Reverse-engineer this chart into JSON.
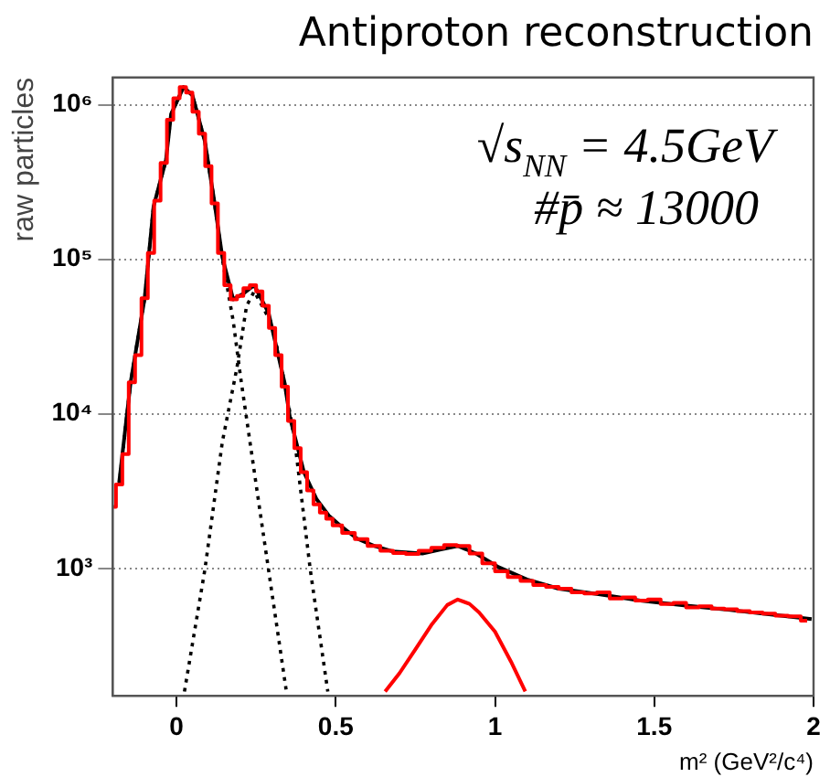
{
  "chart_data": {
    "type": "line",
    "title": "Antiproton reconstruction",
    "xlabel": "m² (GeV²/c⁴)",
    "ylabel": "raw particles",
    "annotations": [
      "√s$_{NN}$ = 4.5GeV",
      "#p̄ ≈ 13000"
    ],
    "log": "y",
    "grid": "y",
    "legend": false,
    "marker": "none",
    "xlim": [
      -0.2,
      2
    ],
    "xticks": [
      0,
      0.5,
      1,
      1.5,
      2
    ],
    "ylim": [
      150,
      1500000
    ],
    "yticks": [
      {
        "value": 1000,
        "label": "10³"
      },
      {
        "value": 10000,
        "label": "10⁴"
      },
      {
        "value": 100000,
        "label": "10⁵"
      },
      {
        "value": 1000000,
        "label": "10⁶"
      }
    ],
    "series": [
      {
        "type": "step",
        "color": "#ff0000",
        "x": [
          -0.2,
          -0.18,
          -0.16,
          -0.14,
          -0.12,
          -0.1,
          -0.08,
          -0.06,
          -0.04,
          -0.02,
          0,
          0.02,
          0.04,
          0.06,
          0.08,
          0.1,
          0.12,
          0.14,
          0.16,
          0.18,
          0.2,
          0.22,
          0.24,
          0.26,
          0.28,
          0.3,
          0.32,
          0.34,
          0.36,
          0.38,
          0.4,
          0.42,
          0.44,
          0.46,
          0.48,
          0.5,
          0.54,
          0.58,
          0.62,
          0.66,
          0.7,
          0.74,
          0.78,
          0.82,
          0.86,
          0.9,
          0.94,
          0.98,
          1.02,
          1.06,
          1.1,
          1.14,
          1.18,
          1.22,
          1.26,
          1.3,
          1.34,
          1.38,
          1.42,
          1.46,
          1.5,
          1.54,
          1.58,
          1.62,
          1.66,
          1.7,
          1.74,
          1.78,
          1.82,
          1.86,
          1.9,
          1.94,
          1.98
        ],
        "values": [
          2500,
          3500,
          5500,
          16000,
          24000,
          56000,
          110000,
          240000,
          420000,
          800000,
          1100000,
          1300000,
          1200000,
          900000,
          650000,
          400000,
          230000,
          110000,
          68000,
          55000,
          58000,
          65000,
          68000,
          62000,
          50000,
          36000,
          24000,
          15000,
          9000,
          6000,
          4200,
          3200,
          2600,
          2300,
          2100,
          1900,
          1700,
          1550,
          1400,
          1300,
          1260,
          1240,
          1300,
          1360,
          1420,
          1400,
          1250,
          1080,
          960,
          880,
          830,
          780,
          760,
          740,
          700,
          690,
          700,
          640,
          650,
          620,
          630,
          590,
          600,
          560,
          570,
          550,
          545,
          530,
          520,
          510,
          495,
          490,
          460
        ]
      },
      {
        "type": "line",
        "color": "#000000",
        "line_style": "dotted",
        "x": [
          -0.18,
          -0.144,
          -0.1,
          -0.072,
          -0.033,
          -0.017,
          0.022,
          0.05,
          0.089,
          0.117,
          0.144,
          0.178,
          0.2,
          0.272,
          0.344
        ],
        "values": [
          3500,
          16000,
          56000,
          220000,
          440000,
          870000,
          1300000,
          1150000,
          580000,
          250000,
          100000,
          40000,
          18000,
          1700,
          165
        ]
      },
      {
        "type": "line",
        "color": "#000000",
        "line_style": "dotted",
        "x": [
          0.025,
          0.089,
          0.144,
          0.19,
          0.22,
          0.244,
          0.3,
          0.339,
          0.37,
          0.42,
          0.475
        ],
        "values": [
          160,
          980,
          6600,
          20000,
          50000,
          62000,
          38000,
          16000,
          7000,
          980,
          160
        ]
      },
      {
        "type": "line",
        "color": "#ff0000",
        "x": [
          0.655,
          0.7,
          0.75,
          0.8,
          0.85,
          0.883,
          0.92,
          0.95,
          1.0,
          1.05,
          1.095
        ],
        "values": [
          160,
          210,
          300,
          430,
          580,
          630,
          590,
          520,
          390,
          250,
          160
        ]
      },
      {
        "type": "line",
        "color": "#000000",
        "x": [
          -0.18,
          -0.144,
          -0.1,
          -0.072,
          -0.033,
          -0.017,
          0.022,
          0.05,
          0.089,
          0.117,
          0.144,
          0.178,
          0.21,
          0.244,
          0.289,
          0.339,
          0.356,
          0.4,
          0.44,
          0.478,
          0.52,
          0.567,
          0.62,
          0.678,
          0.772,
          0.83,
          0.883,
          0.94,
          1.011,
          1.1,
          1.2,
          1.33,
          1.456,
          1.6,
          1.733,
          1.86,
          1.994
        ],
        "values": [
          3600,
          16000,
          56000,
          220000,
          440000,
          870000,
          1300000,
          1150000,
          580000,
          250000,
          103000,
          55000,
          60000,
          68000,
          45000,
          16000,
          9500,
          4200,
          2800,
          2200,
          1850,
          1560,
          1400,
          1290,
          1250,
          1330,
          1400,
          1250,
          1020,
          850,
          740,
          680,
          620,
          575,
          540,
          505,
          470
        ]
      }
    ]
  }
}
